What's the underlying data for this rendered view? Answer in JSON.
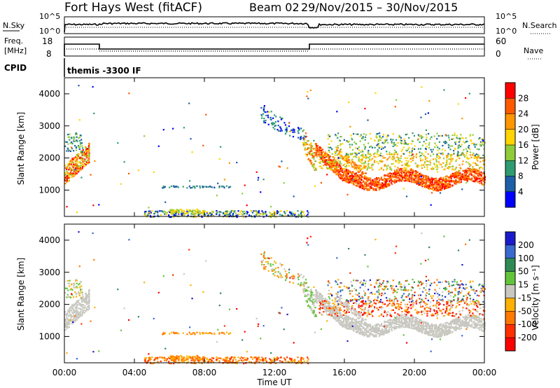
{
  "header": {
    "title": "Fort Hays West (fitACF)",
    "beam": "Beam 02",
    "date_range": "29/Nov/2015 – 30/Nov/2015"
  },
  "noise_panel": {
    "left_label": "N.Sky",
    "left_ticks": [
      "10^5",
      "10^0"
    ],
    "right_ticks": [
      "10^5",
      "10^0"
    ],
    "right_label": "N.Search"
  },
  "freq_panel": {
    "left_label_1": "Freq.",
    "left_label_2": "[MHz]",
    "left_ticks": [
      "18",
      "8"
    ],
    "right_ticks": [
      "60",
      "0"
    ],
    "right_label": "Nave"
  },
  "cpid": {
    "label": "CPID",
    "program": "themis -3300 IF"
  },
  "time_axis": {
    "label": "Time UT",
    "ticks": [
      "00:00",
      "04:00",
      "08:00",
      "12:00",
      "16:00",
      "20:00",
      "00:00"
    ]
  },
  "chart_data": [
    {
      "type": "heatmap",
      "name": "power",
      "ylabel": "Slant Range [km]",
      "yticks": [
        "4000",
        "3000",
        "2000",
        "1000"
      ],
      "xlabel": "Time UT",
      "colorbar": {
        "label": "Power [dB]",
        "ticks": [
          "28",
          "24",
          "20",
          "16",
          "12",
          "8",
          "4"
        ],
        "colors": [
          "#ff0000",
          "#ff5a00",
          "#ff9600",
          "#ffd400",
          "#8fcc3a",
          "#2e9c70",
          "#1d5fa8",
          "#0000ff"
        ]
      },
      "ylim": [
        180,
        4500
      ],
      "xlim_hours": [
        0,
        24
      ]
    },
    {
      "type": "heatmap",
      "name": "velocity",
      "ylabel": "Slant Range [km]",
      "yticks": [
        "4000",
        "3000",
        "2000",
        "1000"
      ],
      "xlabel": "Time UT",
      "colorbar": {
        "label": "Velocity [m s⁻¹]",
        "ticks": [
          "200",
          "100",
          "50",
          "15",
          "-15",
          "-50",
          "-100",
          "-200"
        ],
        "colors": [
          "#1a1acc",
          "#3a6ad0",
          "#2f8a55",
          "#63c43a",
          "#c8c8c0",
          "#ffb000",
          "#ff7800",
          "#ff3000",
          "#ff0000"
        ]
      },
      "ylim": [
        180,
        4500
      ],
      "xlim_hours": [
        0,
        24
      ]
    }
  ]
}
